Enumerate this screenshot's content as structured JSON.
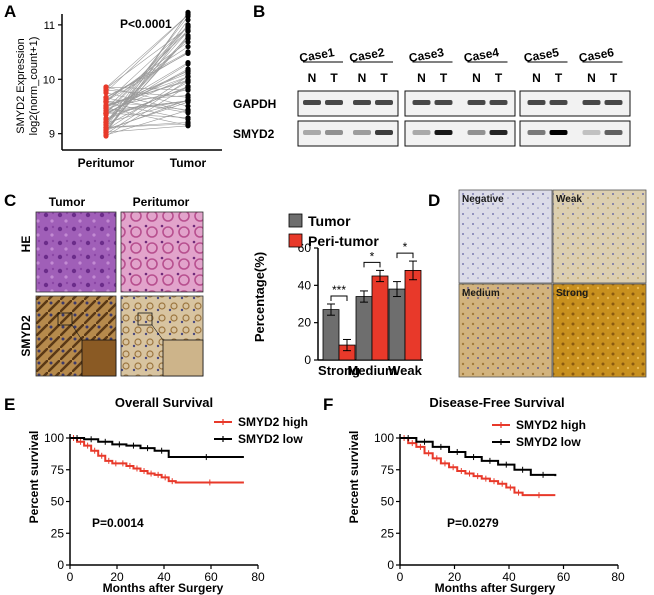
{
  "panel_letters": [
    "A",
    "B",
    "C",
    "D",
    "E",
    "F"
  ],
  "chart_data": [
    {
      "id": "A",
      "type": "scatter",
      "title": "",
      "ylabel_line1": "SMYD2 Expression",
      "ylabel_line2": "log2(norm_count+1)",
      "categories": [
        "Peritumor",
        "Tumor"
      ],
      "ylim": [
        8.7,
        11.2
      ],
      "yticks": [
        9,
        10,
        11
      ],
      "annotation": "P<0.0001",
      "colors": {
        "Peritumor": "#e8392a",
        "Tumor": "#000000"
      },
      "paired_lines": 60,
      "peritumor_range": [
        8.95,
        9.9
      ],
      "tumor_range": [
        9.1,
        11.25
      ]
    },
    {
      "id": "C-bar",
      "type": "bar",
      "ylabel": "Percentage(%)",
      "categories": [
        "Strong",
        "Medium",
        "Weak"
      ],
      "ylim": [
        0,
        60
      ],
      "yticks": [
        0,
        20,
        40,
        60
      ],
      "series": [
        {
          "name": "Tumor",
          "color": "#6e6e6e",
          "values": [
            27,
            34,
            38
          ],
          "errors": [
            3,
            3,
            4
          ]
        },
        {
          "name": "Peri-tumor",
          "color": "#e8392a",
          "values": [
            8,
            45,
            48
          ],
          "errors": [
            3,
            3,
            5
          ]
        }
      ],
      "significance": [
        "***",
        "*",
        "*"
      ]
    },
    {
      "id": "E",
      "type": "line",
      "title": "Overall Survival",
      "xlabel": "Months after Surgery",
      "ylabel": "Percent survival",
      "xlim": [
        0,
        80
      ],
      "ylim": [
        0,
        100
      ],
      "xticks": [
        0,
        20,
        40,
        60,
        80
      ],
      "yticks": [
        0,
        25,
        50,
        75,
        100
      ],
      "annotation": "P=0.0014",
      "series": [
        {
          "name": "SMYD2 high",
          "color": "#e8392a",
          "x": [
            0,
            3,
            6,
            9,
            12,
            15,
            18,
            21,
            24,
            27,
            30,
            33,
            36,
            39,
            42,
            45,
            74
          ],
          "y": [
            100,
            97,
            94,
            90,
            86,
            82,
            80,
            80,
            78,
            76,
            74,
            72,
            71,
            69,
            66,
            65,
            65
          ]
        },
        {
          "name": "SMYD2 low",
          "color": "#000000",
          "x": [
            0,
            6,
            12,
            18,
            24,
            30,
            36,
            42,
            74
          ],
          "y": [
            100,
            99,
            97,
            95,
            94,
            92,
            90,
            85,
            85
          ]
        }
      ]
    },
    {
      "id": "F",
      "type": "line",
      "title": "Disease-Free Survival",
      "xlabel": "Months after Surgery",
      "ylabel": "Percent survival",
      "xlim": [
        0,
        80
      ],
      "ylim": [
        0,
        100
      ],
      "xticks": [
        0,
        20,
        40,
        60,
        80
      ],
      "yticks": [
        0,
        25,
        50,
        75,
        100
      ],
      "annotation": "P=0.0279",
      "series": [
        {
          "name": "SMYD2 high",
          "color": "#e8392a",
          "x": [
            0,
            3,
            6,
            9,
            12,
            15,
            18,
            21,
            24,
            27,
            30,
            33,
            36,
            39,
            42,
            45,
            57
          ],
          "y": [
            100,
            96,
            93,
            88,
            84,
            80,
            77,
            74,
            72,
            70,
            68,
            66,
            64,
            61,
            57,
            55,
            55
          ]
        },
        {
          "name": "SMYD2 low",
          "color": "#000000",
          "x": [
            0,
            6,
            12,
            18,
            24,
            30,
            36,
            42,
            48,
            57
          ],
          "y": [
            100,
            97,
            93,
            89,
            85,
            82,
            79,
            75,
            71,
            70
          ]
        }
      ]
    }
  ],
  "panel_b": {
    "cases": [
      "Case1",
      "Case2",
      "Case3",
      "Case4",
      "Case5",
      "Case6"
    ],
    "lane_labels": [
      "N",
      "T"
    ],
    "row_labels": [
      "GAPDH",
      "SMYD2"
    ],
    "smyd2_intensity": [
      0.3,
      0.4,
      0.35,
      0.75,
      0.3,
      0.9,
      0.4,
      0.85,
      0.5,
      1.0,
      0.2,
      0.6
    ]
  },
  "panel_c": {
    "col_labels": [
      "Tumor",
      "Peritumor"
    ],
    "row_labels": [
      "HE",
      "SMYD2"
    ]
  },
  "panel_d": {
    "labels": [
      "Negative",
      "Weak",
      "Medium",
      "Strong"
    ]
  }
}
